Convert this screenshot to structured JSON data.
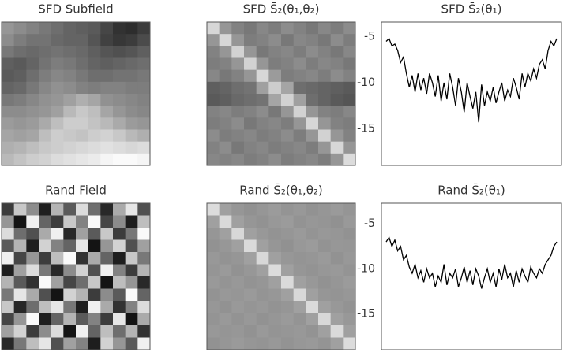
{
  "chart_data": [
    {
      "type": "heatmap",
      "title": "SFD Subfield",
      "values": [
        [
          150,
          140,
          130,
          120,
          110,
          100,
          95,
          90,
          70,
          50,
          45,
          60
        ],
        [
          140,
          125,
          115,
          115,
          105,
          100,
          100,
          85,
          65,
          55,
          60,
          75
        ],
        [
          120,
          110,
          105,
          110,
          115,
          110,
          105,
          95,
          85,
          80,
          85,
          95
        ],
        [
          95,
          90,
          100,
          115,
          125,
          120,
          110,
          100,
          95,
          100,
          105,
          110
        ],
        [
          90,
          95,
          110,
          125,
          135,
          130,
          120,
          110,
          110,
          115,
          115,
          120
        ],
        [
          100,
          105,
          120,
          135,
          145,
          140,
          130,
          125,
          130,
          130,
          125,
          125
        ],
        [
          120,
          125,
          135,
          145,
          150,
          160,
          175,
          165,
          145,
          140,
          135,
          130
        ],
        [
          140,
          140,
          145,
          150,
          160,
          185,
          200,
          190,
          165,
          150,
          140,
          135
        ],
        [
          155,
          150,
          155,
          170,
          190,
          205,
          205,
          195,
          185,
          170,
          155,
          150
        ],
        [
          165,
          160,
          165,
          190,
          205,
          200,
          195,
          205,
          210,
          200,
          185,
          175
        ],
        [
          175,
          180,
          190,
          200,
          205,
          210,
          215,
          220,
          225,
          220,
          215,
          220
        ],
        [
          185,
          195,
          205,
          210,
          220,
          225,
          230,
          235,
          245,
          250,
          250,
          245
        ]
      ]
    },
    {
      "type": "heatmap",
      "title": "SFD S̄₂(θ₁,θ₂)",
      "values": [
        [
          215,
          150,
          130,
          120,
          135,
          125,
          140,
          130,
          120,
          135,
          125,
          140
        ],
        [
          150,
          215,
          150,
          125,
          130,
          140,
          120,
          135,
          130,
          120,
          140,
          125
        ],
        [
          130,
          150,
          210,
          150,
          120,
          130,
          135,
          125,
          140,
          130,
          120,
          135
        ],
        [
          125,
          130,
          150,
          210,
          150,
          125,
          130,
          140,
          125,
          135,
          130,
          120
        ],
        [
          135,
          120,
          130,
          150,
          215,
          155,
          125,
          130,
          135,
          125,
          140,
          130
        ],
        [
          95,
          100,
          110,
          115,
          160,
          205,
          165,
          110,
          105,
          100,
          95,
          90
        ],
        [
          90,
          95,
          105,
          110,
          115,
          165,
          210,
          160,
          110,
          100,
          90,
          85
        ],
        [
          130,
          135,
          125,
          130,
          140,
          120,
          150,
          210,
          150,
          130,
          125,
          135
        ],
        [
          125,
          130,
          140,
          120,
          130,
          135,
          125,
          150,
          215,
          150,
          130,
          125
        ],
        [
          140,
          125,
          130,
          135,
          125,
          130,
          140,
          125,
          150,
          210,
          150,
          130
        ],
        [
          130,
          140,
          120,
          130,
          135,
          125,
          130,
          135,
          125,
          150,
          215,
          150
        ],
        [
          135,
          130,
          135,
          125,
          130,
          140,
          125,
          130,
          135,
          125,
          150,
          220
        ]
      ]
    },
    {
      "type": "line",
      "title": "SFD S̄₂(θ₁)",
      "color": "#000000",
      "ylim": [
        -19,
        -3.4
      ],
      "yticks": [
        -5,
        -10,
        -15
      ],
      "values": [
        -5.5,
        -5.2,
        -6.0,
        -5.8,
        -6.5,
        -7.8,
        -7.2,
        -9.0,
        -10.5,
        -9.2,
        -11.0,
        -9.0,
        -10.8,
        -9.5,
        -11.2,
        -9.0,
        -10.0,
        -11.5,
        -9.2,
        -12.0,
        -10.0,
        -11.8,
        -9.0,
        -10.5,
        -12.5,
        -9.5,
        -11.0,
        -13.2,
        -10.0,
        -11.5,
        -12.8,
        -11.0,
        -14.3,
        -10.2,
        -12.5,
        -11.0,
        -12.0,
        -10.5,
        -12.2,
        -11.0,
        -10.0,
        -12.0,
        -10.8,
        -11.5,
        -9.5,
        -10.5,
        -11.8,
        -9.0,
        -10.5,
        -9.0,
        -9.8,
        -8.5,
        -9.5,
        -8.0,
        -7.5,
        -8.5,
        -6.5,
        -5.5,
        -6.0,
        -5.2
      ]
    },
    {
      "type": "heatmap",
      "title": "Rand Field",
      "values": [
        [
          60,
          200,
          140,
          30,
          180,
          90,
          220,
          110,
          40,
          170,
          230,
          80
        ],
        [
          150,
          20,
          240,
          100,
          60,
          200,
          130,
          250,
          70,
          140,
          30,
          190
        ],
        [
          220,
          110,
          80,
          170,
          240,
          40,
          160,
          90,
          200,
          60,
          120,
          250
        ],
        [
          90,
          180,
          30,
          210,
          130,
          100,
          230,
          20,
          150,
          210,
          80,
          160
        ],
        [
          240,
          70,
          150,
          60,
          190,
          250,
          50,
          170,
          100,
          30,
          200,
          120
        ],
        [
          30,
          160,
          220,
          120,
          40,
          140,
          210,
          80,
          240,
          130,
          60,
          180
        ],
        [
          180,
          90,
          50,
          250,
          160,
          70,
          110,
          200,
          20,
          190,
          150,
          40
        ],
        [
          120,
          230,
          170,
          80,
          20,
          210,
          180,
          60,
          140,
          90,
          250,
          100
        ],
        [
          200,
          40,
          110,
          190,
          230,
          120,
          30,
          240,
          170,
          50,
          130,
          220
        ],
        [
          70,
          150,
          250,
          30,
          100,
          180,
          90,
          130,
          60,
          230,
          20,
          170
        ],
        [
          160,
          210,
          60,
          140,
          220,
          20,
          240,
          100,
          190,
          110,
          180,
          50
        ],
        [
          40,
          120,
          190,
          230,
          80,
          160,
          130,
          30,
          210,
          150,
          90,
          240
        ]
      ]
    },
    {
      "type": "heatmap",
      "title": "Rand S̄₂(θ₁,θ₂)",
      "values": [
        [
          220,
          160,
          150,
          145,
          150,
          155,
          148,
          152,
          146,
          150,
          154,
          149
        ],
        [
          160,
          218,
          160,
          150,
          146,
          152,
          155,
          147,
          151,
          149,
          145,
          153
        ],
        [
          150,
          160,
          216,
          160,
          152,
          147,
          150,
          154,
          148,
          152,
          150,
          146
        ],
        [
          146,
          151,
          160,
          218,
          160,
          150,
          145,
          152,
          155,
          147,
          151,
          150
        ],
        [
          152,
          147,
          150,
          160,
          216,
          160,
          151,
          148,
          150,
          154,
          146,
          152
        ],
        [
          149,
          154,
          146,
          151,
          160,
          220,
          160,
          150,
          147,
          151,
          153,
          148
        ],
        [
          153,
          148,
          152,
          147,
          150,
          160,
          218,
          160,
          152,
          146,
          150,
          155
        ],
        [
          147,
          152,
          150,
          154,
          148,
          151,
          160,
          216,
          160,
          150,
          148,
          151
        ],
        [
          151,
          146,
          153,
          149,
          152,
          147,
          150,
          160,
          218,
          160,
          152,
          147
        ],
        [
          148,
          153,
          147,
          152,
          146,
          150,
          154,
          148,
          160,
          216,
          160,
          152
        ],
        [
          152,
          149,
          151,
          146,
          153,
          148,
          150,
          152,
          147,
          160,
          218,
          160
        ],
        [
          146,
          150,
          154,
          150,
          148,
          152,
          147,
          151,
          153,
          148,
          160,
          220
        ]
      ]
    },
    {
      "type": "line",
      "title": "Rand S̄₂(θ₁)",
      "color": "#000000",
      "ylim": [
        -19,
        -2.7
      ],
      "yticks": [
        -5,
        -10,
        -15
      ],
      "values": [
        -7.0,
        -6.5,
        -7.5,
        -6.8,
        -8.0,
        -7.5,
        -9.0,
        -8.5,
        -9.8,
        -10.5,
        -9.5,
        -11.0,
        -10.2,
        -11.5,
        -10.0,
        -11.0,
        -10.5,
        -12.0,
        -10.8,
        -11.5,
        -9.5,
        -11.8,
        -10.5,
        -11.0,
        -10.0,
        -12.0,
        -11.0,
        -9.8,
        -11.5,
        -10.2,
        -11.8,
        -10.0,
        -10.8,
        -12.2,
        -11.0,
        -10.0,
        -11.5,
        -10.5,
        -12.0,
        -10.0,
        -11.2,
        -9.5,
        -11.0,
        -10.5,
        -12.0,
        -10.2,
        -11.5,
        -10.0,
        -10.8,
        -11.5,
        -9.8,
        -10.5,
        -11.0,
        -10.0,
        -10.5,
        -9.5,
        -9.0,
        -8.5,
        -7.5,
        -7.0
      ]
    }
  ]
}
